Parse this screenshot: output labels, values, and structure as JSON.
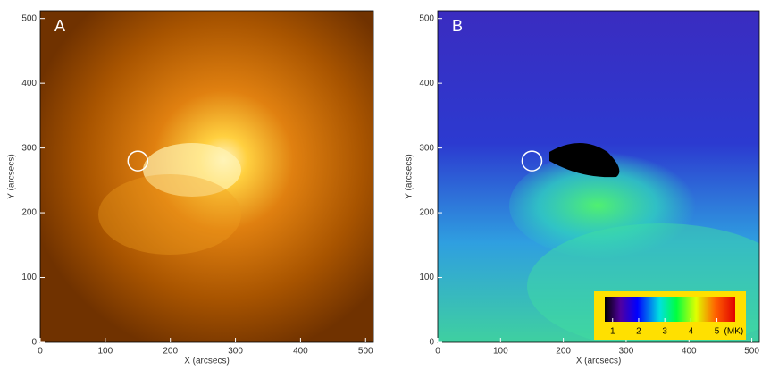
{
  "chart_data": [
    {
      "type": "image",
      "panel_label": "A",
      "xlabel": "X (arcsecs)",
      "ylabel": "Y (arcsecs)",
      "xlim": [
        0,
        512
      ],
      "ylim": [
        0,
        512
      ],
      "xticks": [
        0,
        100,
        200,
        300,
        400,
        500
      ],
      "yticks": [
        0,
        100,
        200,
        300,
        400,
        500
      ],
      "marker": {
        "x": 150,
        "y": 280
      }
    },
    {
      "type": "image",
      "panel_label": "B",
      "xlabel": "X (arcsecs)",
      "ylabel": "Y (arcsecs)",
      "xlim": [
        0,
        512
      ],
      "ylim": [
        0,
        512
      ],
      "xticks": [
        0,
        100,
        200,
        300,
        400,
        500
      ],
      "yticks": [
        0,
        100,
        200,
        300,
        400,
        500
      ],
      "marker": {
        "x": 150,
        "y": 280
      },
      "colorbar": {
        "lim": [
          0.7,
          5.7
        ],
        "ticks": [
          1,
          2,
          3,
          4,
          5
        ],
        "unit": "(MK)"
      }
    }
  ]
}
